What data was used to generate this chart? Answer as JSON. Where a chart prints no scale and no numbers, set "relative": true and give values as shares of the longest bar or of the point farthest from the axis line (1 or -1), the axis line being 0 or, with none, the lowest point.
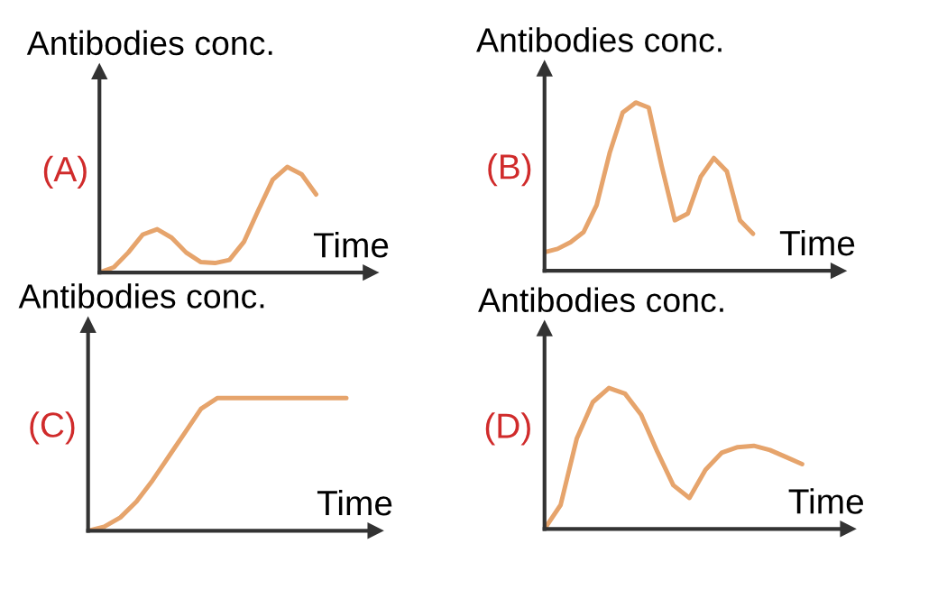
{
  "chart_data": [
    {
      "type": "line",
      "relative": true,
      "xlabel": "Time",
      "ylabel": "Antibodies conc.",
      "annotations": [
        "(A)"
      ],
      "categories": [
        null,
        null,
        null,
        null,
        null,
        null,
        null,
        null,
        null,
        null,
        null,
        null,
        null,
        null,
        null,
        null
      ],
      "series": [
        {
          "color": "#e6a46c",
          "values": [
            0,
            0.05,
            0.19,
            0.36,
            0.41,
            0.33,
            0.19,
            0.1,
            0.09,
            0.12,
            0.29,
            0.59,
            0.88,
            1.0,
            0.93,
            0.74
          ]
        }
      ]
    },
    {
      "type": "line",
      "relative": true,
      "xlabel": "Time",
      "ylabel": "Antibodies conc.",
      "annotations": [
        "(B)"
      ],
      "categories": [
        null,
        null,
        null,
        null,
        null,
        null,
        null,
        null,
        null,
        null,
        null,
        null,
        null,
        null,
        null,
        null,
        null
      ],
      "series": [
        {
          "color": "#e6a46c",
          "values": [
            0.11,
            0.13,
            0.17,
            0.23,
            0.39,
            0.7,
            0.94,
            1.0,
            0.97,
            0.62,
            0.3,
            0.34,
            0.56,
            0.67,
            0.59,
            0.3,
            0.22
          ]
        }
      ]
    },
    {
      "type": "line",
      "relative": true,
      "xlabel": "Time",
      "ylabel": "Antibodies conc.",
      "annotations": [
        "(C)"
      ],
      "categories": [
        null,
        null,
        null,
        null,
        null,
        null,
        null,
        null,
        null,
        null,
        null,
        null,
        null,
        null,
        null,
        null,
        null
      ],
      "series": [
        {
          "color": "#e6a46c",
          "values": [
            0,
            0.03,
            0.1,
            0.22,
            0.38,
            0.56,
            0.74,
            0.92,
            1,
            1,
            1,
            1,
            1,
            1,
            1,
            1,
            1
          ]
        }
      ]
    },
    {
      "type": "line",
      "relative": true,
      "xlabel": "Time",
      "ylabel": "Antibodies conc.",
      "annotations": [
        "(D)"
      ],
      "categories": [
        null,
        null,
        null,
        null,
        null,
        null,
        null,
        null,
        null,
        null,
        null,
        null,
        null,
        null,
        null,
        null,
        null
      ],
      "series": [
        {
          "color": "#e6a46c",
          "values": [
            0,
            0.17,
            0.64,
            0.9,
            1.0,
            0.96,
            0.81,
            0.55,
            0.31,
            0.22,
            0.42,
            0.54,
            0.58,
            0.59,
            0.56,
            0.51,
            0.46
          ]
        }
      ]
    }
  ]
}
